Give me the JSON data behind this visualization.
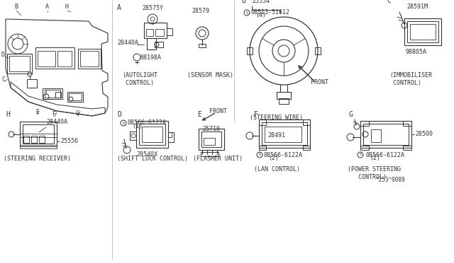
{
  "bg_color": "#ffffff",
  "line_color": "#333333",
  "fig_w": 6.4,
  "fig_h": 3.72,
  "dpi": 100,
  "sections": {
    "A_autolight": {
      "part1": "28575Y",
      "part2": "28440A",
      "part3": "68198A",
      "caption": "(AUTOLIGHT\n CONTROL)"
    },
    "sensor_mask": {
      "part1": "28579",
      "caption": "(SENSOR MASK)"
    },
    "B_steering": {
      "part1": "25554",
      "part2": "08513-51612",
      "part3": "(4)",
      "caption": "(STEERING WIRE)"
    },
    "C_immobiliser": {
      "part1": "28591M",
      "part2": "98805A",
      "caption": "(IMMOBILISER\n CONTROL)"
    },
    "H_receiver": {
      "part1": "28440A",
      "part2": "25556",
      "caption": "(STEERING RECEIVER)"
    },
    "D_shiftlock": {
      "part1": "08566-6122A",
      "part2": "(1)",
      "part3": "28540X",
      "caption": "(SHIFT LOCK CONTROL)"
    },
    "E_flasher": {
      "part1": "25710",
      "caption": "(FLASHER UNIT)"
    },
    "F_lan": {
      "part1": "28491",
      "part2": "08566-6122A",
      "part3": "(2)",
      "caption": "(LAN CONTROL)"
    },
    "G_powersteering": {
      "part1": "28500",
      "part2": "08566-6122A",
      "part3": "(2)",
      "caption": "(POWER STEERING\n  CONTROL)\n^253^0089"
    }
  },
  "footer": "^253^0089"
}
